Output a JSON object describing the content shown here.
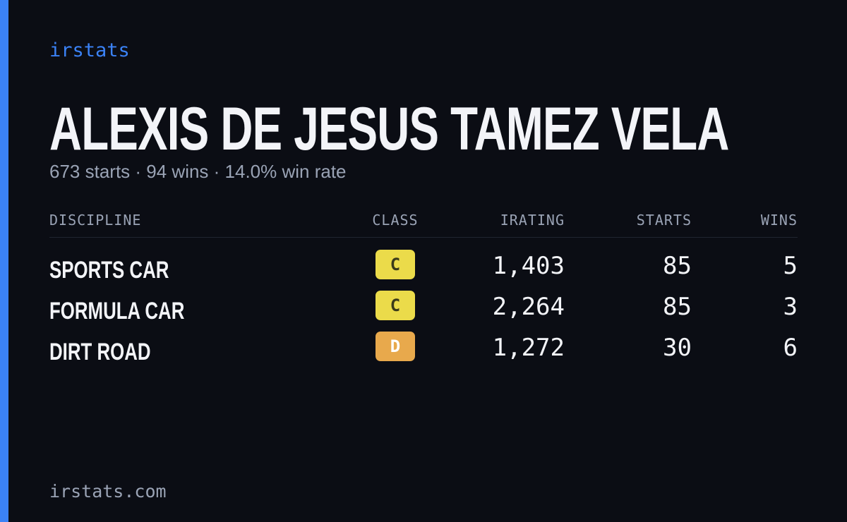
{
  "brand": "irstats",
  "header": {
    "title": "ALEXIS DE JESUS TAMEZ VELA",
    "subtitle": "673 starts · 94 wins · 14.0% win rate"
  },
  "table": {
    "columns": [
      "DISCIPLINE",
      "CLASS",
      "IRATING",
      "STARTS",
      "WINS"
    ],
    "rows": [
      [
        "SPORTS CAR",
        "C",
        "1,403",
        "85",
        "5"
      ],
      [
        "FORMULA CAR",
        "C",
        "2,264",
        "85",
        "3"
      ],
      [
        "DIRT ROAD",
        "D",
        "1,272",
        "30",
        "6"
      ]
    ]
  },
  "footer": "irstats.com"
}
